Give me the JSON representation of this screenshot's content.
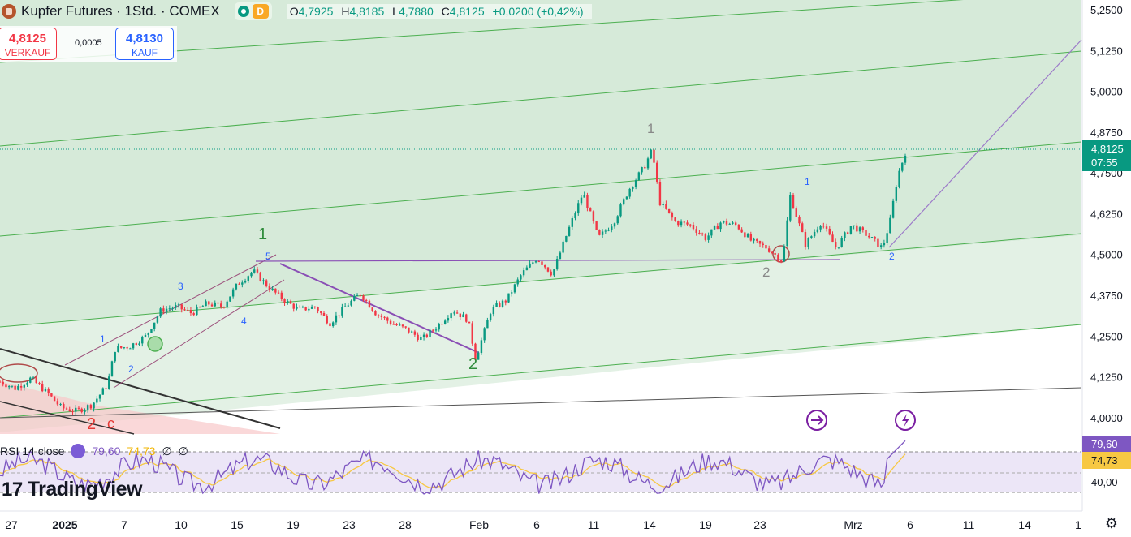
{
  "header": {
    "title": "Kupfer Futures · 1Std. · COMEX",
    "mode_badge": "D",
    "ohlc": [
      {
        "key": "O",
        "value": "4,7925"
      },
      {
        "key": "H",
        "value": "4,8185"
      },
      {
        "key": "L",
        "value": "4,7880"
      },
      {
        "key": "C",
        "value": "4,8125"
      },
      {
        "key": "",
        "value": "+0,0200 (+0,42%)"
      }
    ]
  },
  "trade": {
    "sell_price": "4,8125",
    "sell_label": "VERKAUF",
    "spread": "0,0005",
    "buy_price": "4,8130",
    "buy_label": "KAUF"
  },
  "price_axis": {
    "ticks": [
      "5,2500",
      "5,1250",
      "5,0000",
      "4,8750",
      "4,7500",
      "4,6250",
      "4,5000",
      "4,3750",
      "4,2500",
      "4,1250",
      "4,0000"
    ],
    "current_price": "4,8125",
    "countdown": "07:55"
  },
  "rsi": {
    "label": "RSI 14 close",
    "rsi_value": "79,60",
    "ma_value": "74,73",
    "null_a": "∅",
    "null_b": "∅",
    "axis_label": "40,00",
    "rsi_axis_badge": "79,60",
    "ma_axis_badge": "74,73"
  },
  "time_axis": {
    "ticks": [
      "27",
      "2025",
      "7",
      "10",
      "15",
      "19",
      "23",
      "28",
      "Feb",
      "6",
      "11",
      "14",
      "19",
      "23",
      "Mrz",
      "6",
      "11",
      "14",
      "1"
    ]
  },
  "wave_labels": {
    "major_1": "1",
    "major_2": "2",
    "major_c2": "2",
    "major_c": "c",
    "minor_1": "1",
    "minor_2": "2",
    "minor_3": "3",
    "minor_4": "4",
    "minor_5": "5",
    "grey_1": "1",
    "grey_2": "2",
    "blue_1b": "1",
    "blue_2b": "2"
  },
  "branding": {
    "logo_text": "TradingView"
  },
  "colors": {
    "up": "#089981",
    "down": "#f23645",
    "channel_fill": "#d6ead9",
    "channel_line": "#4caf50",
    "projection": "#9c7ac9",
    "rsi": "#7e57c2",
    "rsi_ma": "#f7c843"
  },
  "chart_data": {
    "type": "candlestick",
    "title": "Kupfer Futures · 1Std. · COMEX",
    "ylim": [
      3.95,
      5.265
    ],
    "yticks": [
      5.25,
      5.125,
      5.0,
      4.875,
      4.75,
      4.625,
      4.5,
      4.375,
      4.25,
      4.125,
      4.0
    ],
    "x_ticks": [
      "27",
      "2025",
      "7",
      "10",
      "15",
      "19",
      "23",
      "28",
      "Feb",
      "6",
      "11",
      "14",
      "19",
      "23",
      "Mrz",
      "6",
      "11",
      "14",
      "1"
    ],
    "close_path": [
      {
        "t": 0,
        "y": 4.11
      },
      {
        "t": 2,
        "y": 4.09
      },
      {
        "t": 4,
        "y": 4.12
      },
      {
        "t": 6,
        "y": 4.08
      },
      {
        "t": 8,
        "y": 4.03
      },
      {
        "t": 10,
        "y": 4.02
      },
      {
        "t": 12,
        "y": 4.04
      },
      {
        "t": 14,
        "y": 4.1
      },
      {
        "t": 15,
        "y": 4.21
      },
      {
        "t": 17,
        "y": 4.22
      },
      {
        "t": 19,
        "y": 4.25
      },
      {
        "t": 21,
        "y": 4.33
      },
      {
        "t": 23,
        "y": 4.34
      },
      {
        "t": 25,
        "y": 4.32
      },
      {
        "t": 27,
        "y": 4.35
      },
      {
        "t": 29,
        "y": 4.34
      },
      {
        "t": 31,
        "y": 4.41
      },
      {
        "t": 33,
        "y": 4.45
      },
      {
        "t": 35,
        "y": 4.4
      },
      {
        "t": 37,
        "y": 4.36
      },
      {
        "t": 39,
        "y": 4.33
      },
      {
        "t": 41,
        "y": 4.34
      },
      {
        "t": 43,
        "y": 4.29
      },
      {
        "t": 45,
        "y": 4.34
      },
      {
        "t": 47,
        "y": 4.38
      },
      {
        "t": 49,
        "y": 4.32
      },
      {
        "t": 51,
        "y": 4.29
      },
      {
        "t": 53,
        "y": 4.27
      },
      {
        "t": 55,
        "y": 4.24
      },
      {
        "t": 57,
        "y": 4.28
      },
      {
        "t": 59,
        "y": 4.33
      },
      {
        "t": 61,
        "y": 4.3
      },
      {
        "t": 62,
        "y": 4.18
      },
      {
        "t": 64,
        "y": 4.33
      },
      {
        "t": 66,
        "y": 4.36
      },
      {
        "t": 68,
        "y": 4.44
      },
      {
        "t": 70,
        "y": 4.49
      },
      {
        "t": 72,
        "y": 4.44
      },
      {
        "t": 74,
        "y": 4.57
      },
      {
        "t": 76,
        "y": 4.69
      },
      {
        "t": 78,
        "y": 4.55
      },
      {
        "t": 80,
        "y": 4.6
      },
      {
        "t": 82,
        "y": 4.7
      },
      {
        "t": 84,
        "y": 4.77
      },
      {
        "t": 85,
        "y": 4.82
      },
      {
        "t": 86,
        "y": 4.66
      },
      {
        "t": 88,
        "y": 4.6
      },
      {
        "t": 90,
        "y": 4.59
      },
      {
        "t": 92,
        "y": 4.55
      },
      {
        "t": 94,
        "y": 4.6
      },
      {
        "t": 96,
        "y": 4.59
      },
      {
        "t": 98,
        "y": 4.54
      },
      {
        "t": 100,
        "y": 4.52
      },
      {
        "t": 102,
        "y": 4.48
      },
      {
        "t": 103,
        "y": 4.68
      },
      {
        "t": 105,
        "y": 4.53
      },
      {
        "t": 107,
        "y": 4.6
      },
      {
        "t": 109,
        "y": 4.52
      },
      {
        "t": 111,
        "y": 4.59
      },
      {
        "t": 113,
        "y": 4.56
      },
      {
        "t": 115,
        "y": 4.52
      },
      {
        "t": 116,
        "y": 4.6
      },
      {
        "t": 117,
        "y": 4.74
      },
      {
        "t": 118,
        "y": 4.8125
      }
    ],
    "last_price": 4.8125,
    "rsi": {
      "length": 14,
      "source": "close",
      "value": 79.6,
      "ma_value": 74.73,
      "band_labels": [
        "40,00"
      ]
    }
  }
}
